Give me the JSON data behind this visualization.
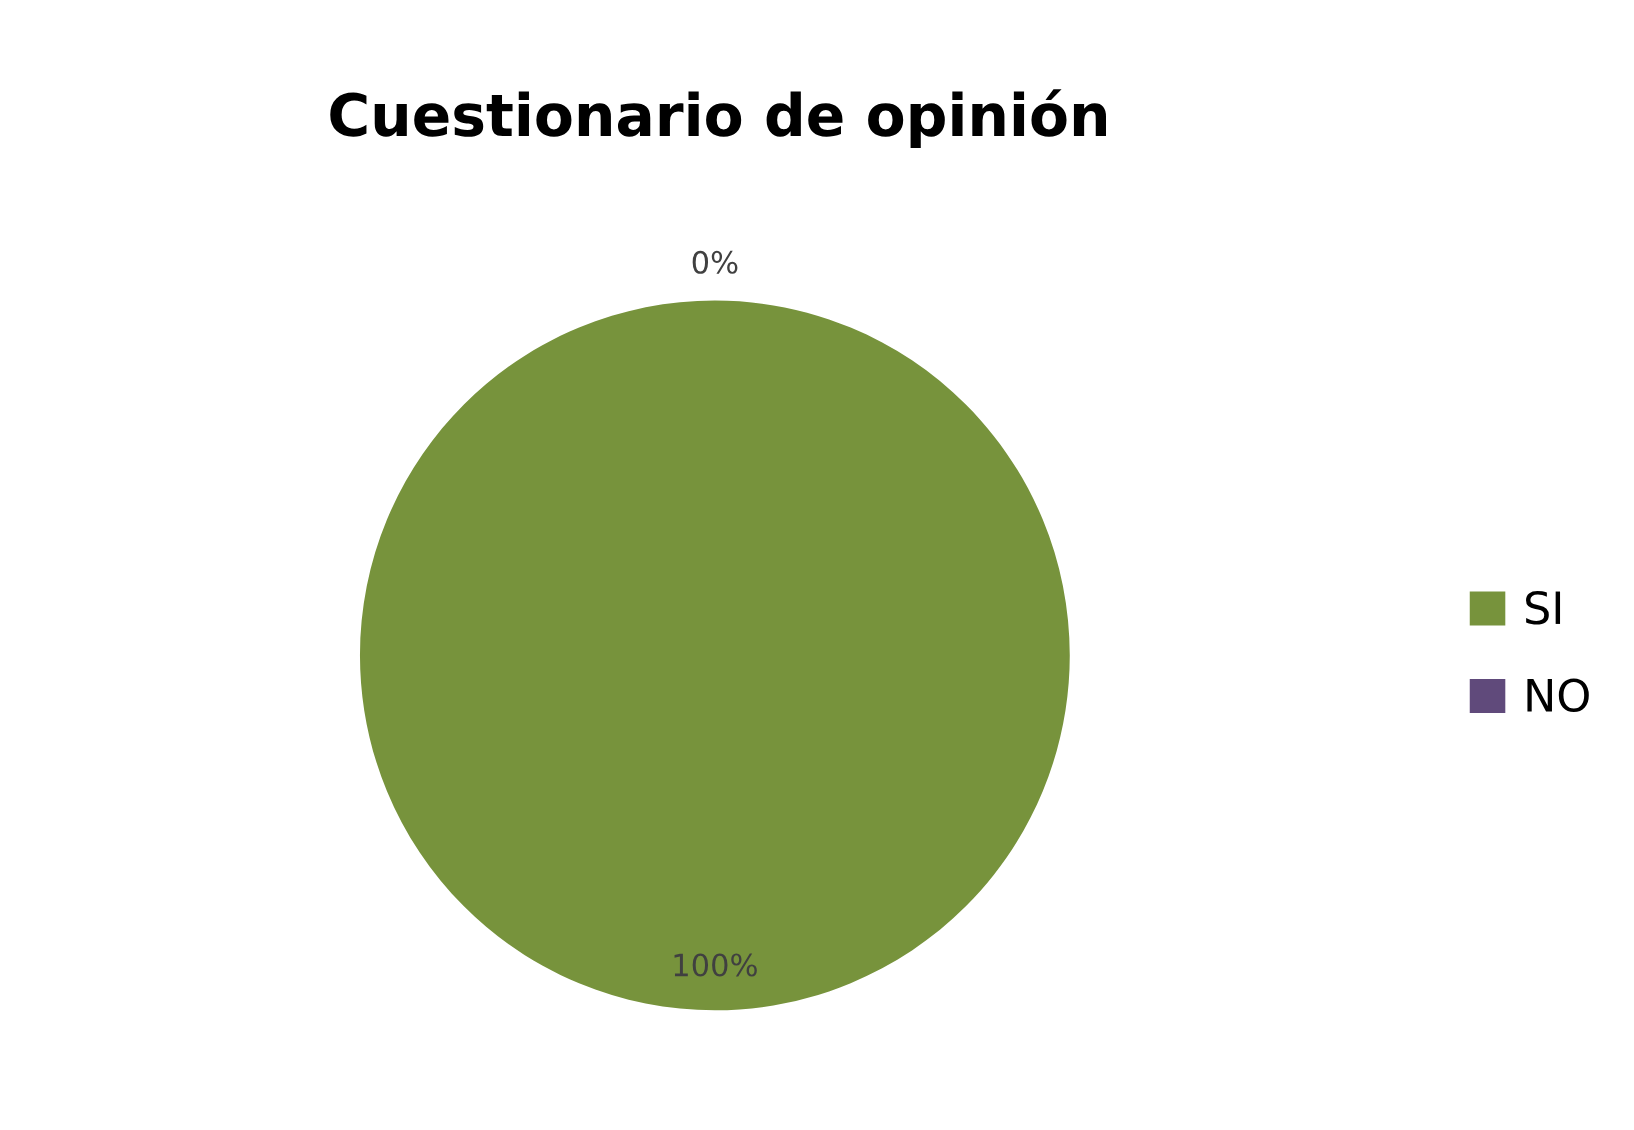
{
  "chart_data": {
    "type": "pie",
    "title": "Cuestionario de opinión",
    "categories": [
      "SI",
      "NO"
    ],
    "values": [
      100,
      0
    ],
    "colors": [
      "#77933c",
      "#604a7b"
    ],
    "value_labels": [
      "100%",
      "0%"
    ],
    "legend": "right"
  }
}
